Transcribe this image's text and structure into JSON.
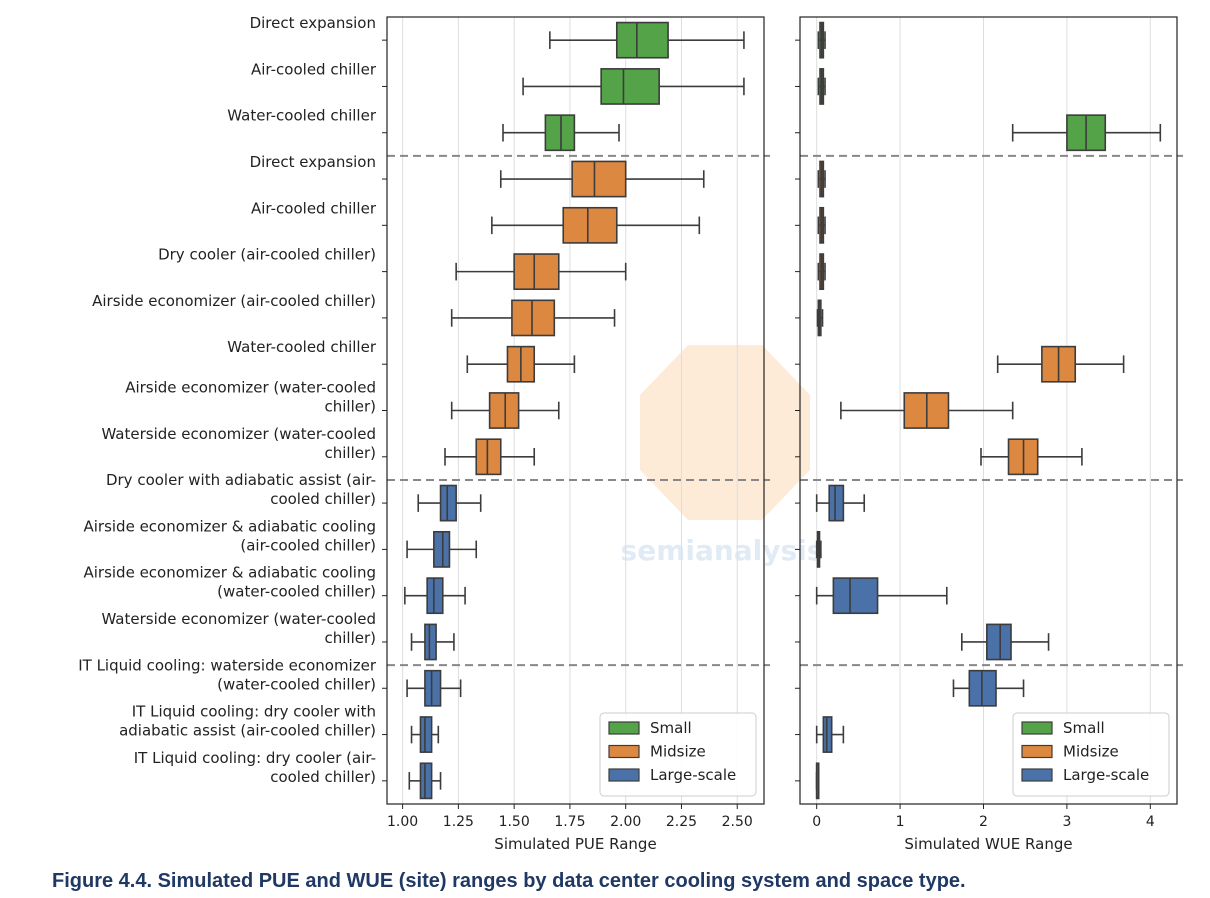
{
  "caption": "Figure 4.4.  Simulated PUE and WUE (site) ranges by data center cooling system and space type.",
  "watermark": "semianalysis",
  "chart_data": [
    {
      "type": "boxplot",
      "id": "pue",
      "xlabel": "Simulated PUE Range",
      "xlim": [
        0.93,
        2.62
      ],
      "ticks": [
        1.0,
        1.25,
        1.5,
        1.75,
        2.0,
        2.25,
        2.5
      ],
      "tick_labels": [
        "1.00",
        "1.25",
        "1.50",
        "1.75",
        "2.00",
        "2.25",
        "2.50"
      ],
      "grid": true,
      "legend_position": "bottom-right",
      "separators_after": [
        2,
        9,
        13
      ]
    },
    {
      "type": "boxplot",
      "id": "wue",
      "xlabel": "Simulated WUE Range",
      "xlim": [
        -0.2,
        4.32
      ],
      "ticks": [
        0,
        1,
        2,
        3,
        4
      ],
      "tick_labels": [
        "0",
        "1",
        "2",
        "3",
        "4"
      ],
      "grid": true,
      "legend_position": "bottom-right",
      "separators_after": [
        2,
        9,
        13
      ]
    }
  ],
  "legend": [
    {
      "name": "Small",
      "color": "#55a348"
    },
    {
      "name": "Midsize",
      "color": "#dd8840"
    },
    {
      "name": "Large-scale",
      "color": "#4a72a8"
    }
  ],
  "categories": [
    {
      "label": [
        "Direct expansion"
      ],
      "size": "Small",
      "pue": [
        1.66,
        1.96,
        2.05,
        2.19,
        2.53
      ],
      "wue": [
        0.02,
        0.04,
        0.06,
        0.08,
        0.1
      ]
    },
    {
      "label": [
        "Air-cooled chiller"
      ],
      "size": "Small",
      "pue": [
        1.54,
        1.89,
        1.99,
        2.15,
        2.53
      ],
      "wue": [
        0.02,
        0.04,
        0.06,
        0.08,
        0.1
      ]
    },
    {
      "label": [
        "Water-cooled chiller"
      ],
      "size": "Small",
      "pue": [
        1.45,
        1.64,
        1.71,
        1.77,
        1.97
      ],
      "wue": [
        2.35,
        3.0,
        3.23,
        3.46,
        4.12
      ]
    },
    {
      "label": [
        "Direct expansion"
      ],
      "size": "Midsize",
      "pue": [
        1.44,
        1.76,
        1.86,
        2.0,
        2.35
      ],
      "wue": [
        0.02,
        0.04,
        0.06,
        0.08,
        0.1
      ]
    },
    {
      "label": [
        "Air-cooled chiller"
      ],
      "size": "Midsize",
      "pue": [
        1.4,
        1.72,
        1.83,
        1.96,
        2.33
      ],
      "wue": [
        0.02,
        0.04,
        0.06,
        0.08,
        0.1
      ]
    },
    {
      "label": [
        "Dry cooler (air-cooled chiller)"
      ],
      "size": "Midsize",
      "pue": [
        1.24,
        1.5,
        1.59,
        1.7,
        2.0
      ],
      "wue": [
        0.02,
        0.04,
        0.06,
        0.08,
        0.1
      ]
    },
    {
      "label": [
        "Airside economizer (air-cooled chiller)"
      ],
      "size": "Midsize",
      "pue": [
        1.22,
        1.49,
        1.58,
        1.68,
        1.95
      ],
      "wue": [
        0.01,
        0.02,
        0.03,
        0.05,
        0.07
      ]
    },
    {
      "label": [
        "Water-cooled chiller"
      ],
      "size": "Midsize",
      "pue": [
        1.29,
        1.47,
        1.53,
        1.59,
        1.77
      ],
      "wue": [
        2.17,
        2.7,
        2.9,
        3.1,
        3.68
      ]
    },
    {
      "label": [
        "Airside economizer (water-cooled",
        "chiller)"
      ],
      "size": "Midsize",
      "pue": [
        1.22,
        1.39,
        1.46,
        1.52,
        1.7
      ],
      "wue": [
        0.29,
        1.05,
        1.32,
        1.58,
        2.35
      ]
    },
    {
      "label": [
        "Waterside economizer (water-cooled",
        "chiller)"
      ],
      "size": "Midsize",
      "pue": [
        1.19,
        1.33,
        1.38,
        1.44,
        1.59
      ],
      "wue": [
        1.97,
        2.3,
        2.48,
        2.65,
        3.18
      ]
    },
    {
      "label": [
        "Dry cooler with adiabatic assist (air-",
        "cooled chiller)"
      ],
      "size": "Large-scale",
      "pue": [
        1.07,
        1.17,
        1.2,
        1.24,
        1.35
      ],
      "wue": [
        0.0,
        0.15,
        0.22,
        0.32,
        0.57
      ]
    },
    {
      "label": [
        "Airside economizer & adiabatic cooling",
        "(air-cooled chiller)"
      ],
      "size": "Large-scale",
      "pue": [
        1.02,
        1.14,
        1.18,
        1.21,
        1.33
      ],
      "wue": [
        0.0,
        0.01,
        0.02,
        0.03,
        0.05
      ]
    },
    {
      "label": [
        "Airside economizer & adiabatic cooling",
        "(water-cooled chiller)"
      ],
      "size": "Large-scale",
      "pue": [
        1.01,
        1.11,
        1.14,
        1.18,
        1.28
      ],
      "wue": [
        0.0,
        0.2,
        0.4,
        0.73,
        1.56
      ]
    },
    {
      "label": [
        "Waterside economizer (water-cooled",
        "chiller)"
      ],
      "size": "Large-scale",
      "pue": [
        1.04,
        1.1,
        1.12,
        1.15,
        1.23
      ],
      "wue": [
        1.74,
        2.04,
        2.2,
        2.33,
        2.78
      ]
    },
    {
      "label": [
        "IT Liquid cooling: waterside economizer",
        "(water-cooled chiller)"
      ],
      "size": "Large-scale",
      "pue": [
        1.02,
        1.1,
        1.13,
        1.17,
        1.26
      ],
      "wue": [
        1.64,
        1.83,
        1.98,
        2.15,
        2.48
      ]
    },
    {
      "label": [
        "IT Liquid cooling: dry cooler with",
        "adiabatic assist (air-cooled chiller)"
      ],
      "size": "Large-scale",
      "pue": [
        1.04,
        1.08,
        1.1,
        1.13,
        1.16
      ],
      "wue": [
        0.0,
        0.08,
        0.12,
        0.18,
        0.32
      ]
    },
    {
      "label": [
        "IT Liquid cooling: dry cooler (air-",
        "cooled chiller)"
      ],
      "size": "Large-scale",
      "pue": [
        1.03,
        1.08,
        1.1,
        1.13,
        1.17
      ],
      "wue": [
        0.0,
        0.0,
        0.0,
        0.0,
        0.0
      ]
    }
  ]
}
